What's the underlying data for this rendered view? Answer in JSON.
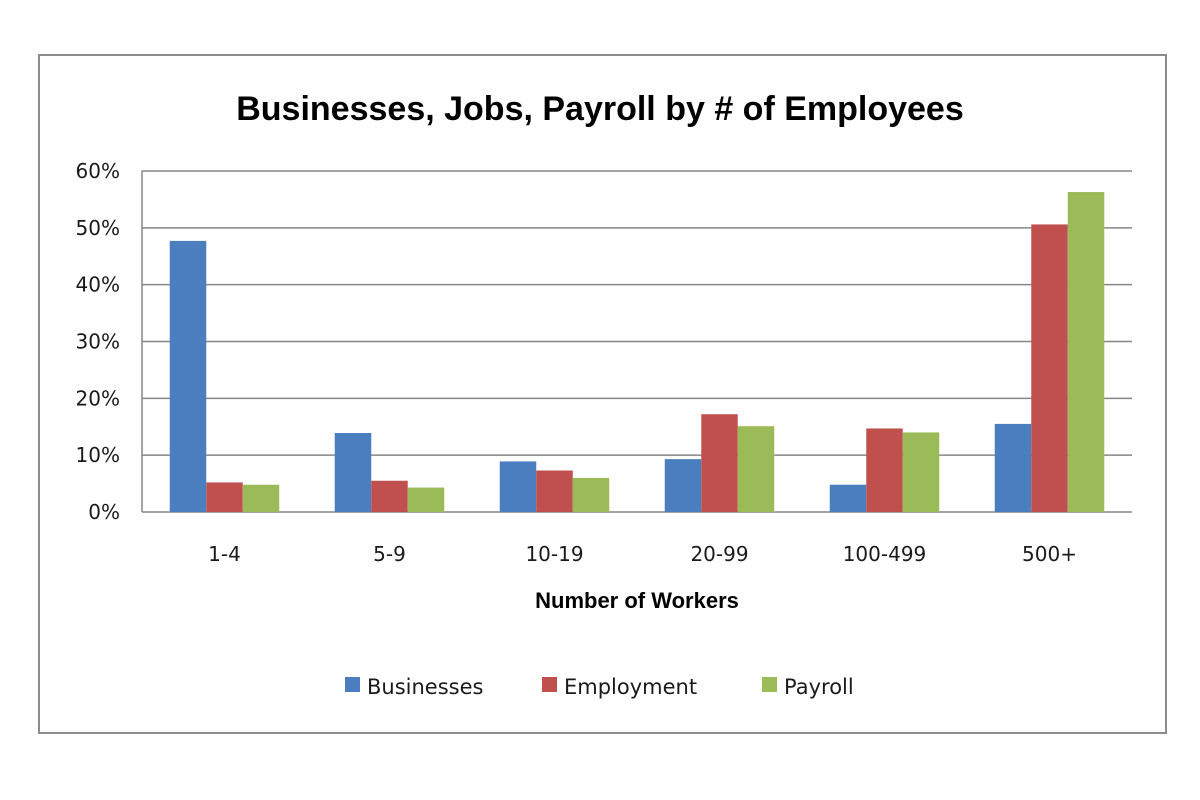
{
  "chart_data": {
    "type": "bar",
    "title": "Businesses, Jobs, Payroll by # of Employees",
    "xlabel": "Number of Workers",
    "ylabel": "",
    "categories": [
      "1-4",
      "5-9",
      "10-19",
      "20-99",
      "100-499",
      "500+"
    ],
    "series": [
      {
        "name": "Businesses",
        "color": "#4a7ebf",
        "values": [
          47.7,
          13.9,
          8.9,
          9.3,
          4.8,
          15.5
        ]
      },
      {
        "name": "Employment",
        "color": "#c0504d",
        "values": [
          5.2,
          5.5,
          7.3,
          17.2,
          14.7,
          50.6
        ]
      },
      {
        "name": "Payroll",
        "color": "#9bbb59",
        "values": [
          4.8,
          4.3,
          6.0,
          15.1,
          14.0,
          56.3
        ]
      }
    ],
    "ylim": [
      0,
      60
    ],
    "yticks": [
      0,
      10,
      20,
      30,
      40,
      50,
      60
    ],
    "ytick_labels": [
      "0%",
      "10%",
      "20%",
      "30%",
      "40%",
      "50%",
      "60%"
    ],
    "grid": true,
    "legend_position": "bottom"
  }
}
